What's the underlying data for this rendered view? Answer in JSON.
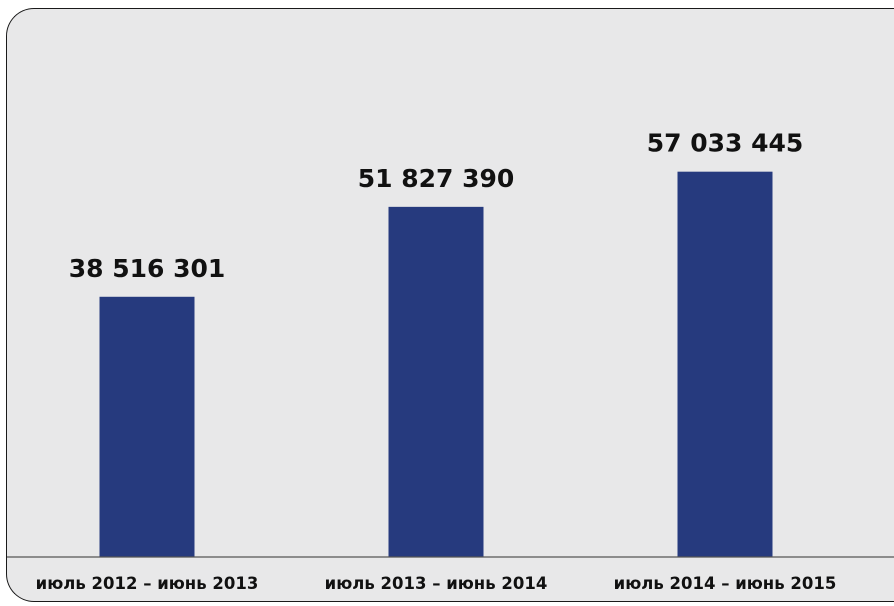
{
  "colors": {
    "background": "#e8e8e9",
    "bar": "#263a7e",
    "text": "#111111",
    "axis": "#555555"
  },
  "chart_data": {
    "type": "bar",
    "categories": [
      "июль 2012 – июнь 2013",
      "июль 2013 – июнь 2014",
      "июль 2014 – июнь 2015"
    ],
    "values": [
      38516301,
      51827390,
      57033445
    ],
    "value_labels": [
      "38 516 301",
      "51 827 390",
      "57 033 445"
    ],
    "title": "",
    "xlabel": "",
    "ylabel": "",
    "ylim": [
      0,
      70000000
    ],
    "grid": false,
    "legend": "none"
  }
}
